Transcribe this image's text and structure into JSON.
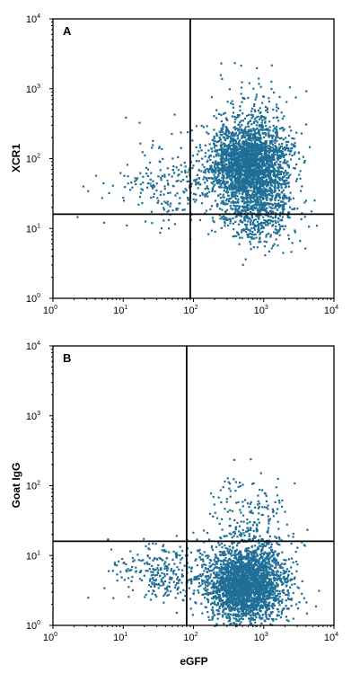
{
  "chart_data": [
    {
      "type": "scatter",
      "panel_label": "A",
      "xlabel": "",
      "ylabel": "XCR1",
      "x_scale": "log",
      "y_scale": "log",
      "xlim": [
        1,
        10000
      ],
      "ylim": [
        1,
        10000
      ],
      "x_ticks": [
        {
          "base": "10",
          "exp": "0"
        },
        {
          "base": "10",
          "exp": "1"
        },
        {
          "base": "10",
          "exp": "2"
        },
        {
          "base": "10",
          "exp": "3"
        },
        {
          "base": "10",
          "exp": "4"
        }
      ],
      "y_ticks": [
        {
          "base": "10",
          "exp": "0"
        },
        {
          "base": "10",
          "exp": "1"
        },
        {
          "base": "10",
          "exp": "2"
        },
        {
          "base": "10",
          "exp": "3"
        },
        {
          "base": "10",
          "exp": "4"
        }
      ],
      "quadrant_gate": {
        "x": 90,
        "y": 16
      },
      "point_color": "#1f6e96",
      "populations": [
        {
          "center": [
            600,
            85
          ],
          "spread_log10": [
            0.28,
            0.32
          ],
          "count": 2600
        },
        {
          "center": [
            900,
            15
          ],
          "spread_log10": [
            0.25,
            0.22
          ],
          "count": 420
        },
        {
          "center": [
            60,
            45
          ],
          "spread_log10": [
            0.45,
            0.3
          ],
          "count": 260
        },
        {
          "center": [
            800,
            700
          ],
          "spread_log10": [
            0.35,
            0.25
          ],
          "count": 60
        }
      ]
    },
    {
      "type": "scatter",
      "panel_label": "B",
      "xlabel": "eGFP",
      "ylabel": "Goat IgG",
      "x_scale": "log",
      "y_scale": "log",
      "xlim": [
        1,
        10000
      ],
      "ylim": [
        1,
        10000
      ],
      "x_ticks": [
        {
          "base": "10",
          "exp": "0"
        },
        {
          "base": "10",
          "exp": "1"
        },
        {
          "base": "10",
          "exp": "2"
        },
        {
          "base": "10",
          "exp": "3"
        },
        {
          "base": "10",
          "exp": "4"
        }
      ],
      "y_ticks": [
        {
          "base": "10",
          "exp": "0"
        },
        {
          "base": "10",
          "exp": "1"
        },
        {
          "base": "10",
          "exp": "2"
        },
        {
          "base": "10",
          "exp": "3"
        },
        {
          "base": "10",
          "exp": "4"
        }
      ],
      "quadrant_gate": {
        "x": 80,
        "y": 16
      },
      "point_color": "#1f6e96",
      "populations": [
        {
          "center": [
            550,
            4
          ],
          "spread_log10": [
            0.28,
            0.3
          ],
          "count": 2600
        },
        {
          "center": [
            40,
            6
          ],
          "spread_log10": [
            0.4,
            0.22
          ],
          "count": 300
        },
        {
          "center": [
            700,
            40
          ],
          "spread_log10": [
            0.3,
            0.3
          ],
          "count": 160
        }
      ]
    }
  ]
}
